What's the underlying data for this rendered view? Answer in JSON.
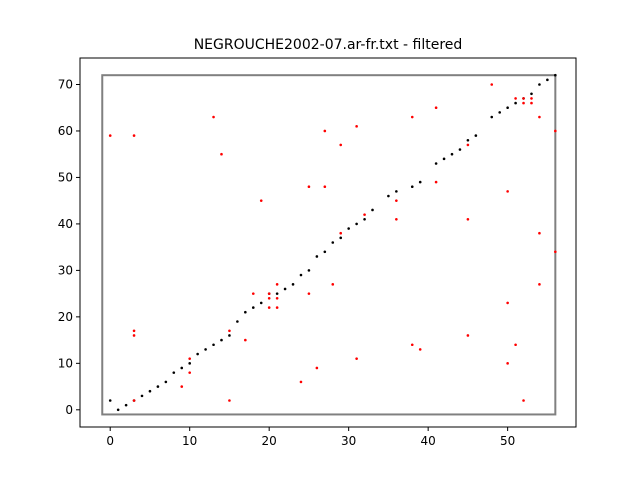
{
  "chart_data": {
    "type": "scatter",
    "title": "NEGROUCHE2002-07.ar-fr.txt - filtered",
    "xlabel": "",
    "ylabel": "",
    "xlim": [
      -3.8,
      58.6
    ],
    "ylim": [
      -3.7,
      75.7
    ],
    "x_ticks": [
      0,
      10,
      20,
      30,
      40,
      50
    ],
    "y_ticks": [
      0,
      10,
      20,
      30,
      40,
      50,
      60,
      70
    ],
    "grid": false,
    "legend": "none",
    "colors": {
      "aligned": "#000000",
      "candidates": "#ff0000",
      "box": "#808080"
    },
    "box": {
      "x": [
        -1,
        56
      ],
      "y": [
        -1,
        72
      ]
    },
    "series": [
      {
        "color": "#000000",
        "points": [
          [
            0,
            2
          ],
          [
            1,
            0
          ],
          [
            2,
            1
          ],
          [
            3,
            2
          ],
          [
            4,
            3
          ],
          [
            5,
            4
          ],
          [
            6,
            5
          ],
          [
            7,
            6
          ],
          [
            8,
            8
          ],
          [
            9,
            9
          ],
          [
            10,
            10
          ],
          [
            11,
            12
          ],
          [
            12,
            13
          ],
          [
            13,
            14
          ],
          [
            14,
            15
          ],
          [
            15,
            16
          ],
          [
            16,
            19
          ],
          [
            17,
            21
          ],
          [
            18,
            22
          ],
          [
            19,
            23
          ],
          [
            20,
            25
          ],
          [
            21,
            25
          ],
          [
            22,
            26
          ],
          [
            23,
            27
          ],
          [
            24,
            29
          ],
          [
            25,
            30
          ],
          [
            26,
            33
          ],
          [
            27,
            34
          ],
          [
            28,
            36
          ],
          [
            29,
            37
          ],
          [
            30,
            39
          ],
          [
            31,
            40
          ],
          [
            32,
            41
          ],
          [
            33,
            43
          ],
          [
            35,
            46
          ],
          [
            36,
            47
          ],
          [
            38,
            48
          ],
          [
            39,
            49
          ],
          [
            41,
            53
          ],
          [
            42,
            54
          ],
          [
            43,
            55
          ],
          [
            44,
            56
          ],
          [
            45,
            58
          ],
          [
            46,
            59
          ],
          [
            48,
            63
          ],
          [
            49,
            64
          ],
          [
            50,
            65
          ],
          [
            51,
            66
          ],
          [
            52,
            67
          ],
          [
            53,
            68
          ],
          [
            54,
            70
          ],
          [
            55,
            71
          ],
          [
            56,
            72
          ]
        ]
      },
      {
        "color": "#ff0000",
        "points": [
          [
            0,
            59
          ],
          [
            3,
            59
          ],
          [
            3,
            17
          ],
          [
            3,
            16
          ],
          [
            3,
            2
          ],
          [
            9,
            5
          ],
          [
            10,
            11
          ],
          [
            10,
            8
          ],
          [
            13,
            63
          ],
          [
            14,
            55
          ],
          [
            15,
            2
          ],
          [
            15,
            17
          ],
          [
            17,
            15
          ],
          [
            18,
            25
          ],
          [
            19,
            45
          ],
          [
            20,
            25
          ],
          [
            20,
            24
          ],
          [
            20,
            22
          ],
          [
            21,
            27
          ],
          [
            21,
            24
          ],
          [
            21,
            22
          ],
          [
            24,
            6
          ],
          [
            25,
            48
          ],
          [
            25,
            25
          ],
          [
            26,
            9
          ],
          [
            27,
            60
          ],
          [
            27,
            48
          ],
          [
            28,
            27
          ],
          [
            29,
            57
          ],
          [
            29,
            38
          ],
          [
            31,
            61
          ],
          [
            31,
            11
          ],
          [
            32,
            42
          ],
          [
            36,
            45
          ],
          [
            36,
            41
          ],
          [
            38,
            63
          ],
          [
            38,
            14
          ],
          [
            39,
            13
          ],
          [
            41,
            65
          ],
          [
            41,
            49
          ],
          [
            45,
            57
          ],
          [
            45,
            41
          ],
          [
            45,
            16
          ],
          [
            48,
            70
          ],
          [
            50,
            47
          ],
          [
            50,
            23
          ],
          [
            50,
            10
          ],
          [
            51,
            67
          ],
          [
            51,
            14
          ],
          [
            52,
            67
          ],
          [
            52,
            66
          ],
          [
            52,
            2
          ],
          [
            53,
            67
          ],
          [
            53,
            66
          ],
          [
            54,
            63
          ],
          [
            54,
            38
          ],
          [
            54,
            27
          ],
          [
            56,
            60
          ],
          [
            56,
            34
          ]
        ]
      }
    ]
  }
}
